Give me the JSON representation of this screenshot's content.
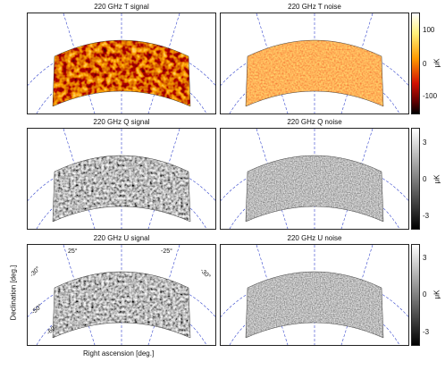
{
  "panels": [
    {
      "title": "220 GHz T signal",
      "kind": "T",
      "fill": "url(#hotTex)"
    },
    {
      "title": "220 GHz T noise",
      "kind": "T",
      "fill": "url(#hotNoise)"
    },
    {
      "title": "220 GHz Q signal",
      "kind": "QU",
      "fill": "url(#grayTex)"
    },
    {
      "title": "220 GHz Q noise",
      "kind": "QU",
      "fill": "url(#grayNoise)"
    },
    {
      "title": "220 GHz U signal",
      "kind": "QU",
      "fill": "url(#grayTex)"
    },
    {
      "title": "220 GHz U noise",
      "kind": "QU",
      "fill": "url(#grayNoise)"
    }
  ],
  "colorbars": [
    {
      "ticks": [
        "100",
        "0",
        "-100"
      ],
      "unit": "μK",
      "scheme": "hot"
    },
    {
      "ticks": [
        "3",
        "0",
        "-3"
      ],
      "unit": "μK",
      "scheme": "gray"
    },
    {
      "ticks": [
        "3",
        "0",
        "-3"
      ],
      "unit": "μK",
      "scheme": "gray"
    }
  ],
  "axes": {
    "ylabel": "Declination [deg.]",
    "xlabel": "Right ascension [deg.]"
  },
  "grid_labels": {
    "ra_left": "25°",
    "ra_right": "-25°",
    "dec_top_left": "-30°",
    "dec_top_right": "-30°",
    "dec_mid": "-50°",
    "dec_bottom": "-60°"
  }
}
